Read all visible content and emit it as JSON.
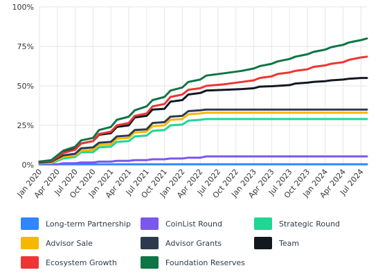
{
  "chart_data": {
    "type": "line",
    "xlabel": "",
    "ylabel": "",
    "ylim": [
      0,
      100
    ],
    "y_ticks": [
      "0%",
      "25%",
      "50%",
      "75%",
      "100%"
    ],
    "x_ticks": [
      "Jan 2020",
      "Apr 2020",
      "Jul 2020",
      "Oct 2020",
      "Jan 2021",
      "Apr 2021",
      "Jul 2021",
      "Oct 2021",
      "Jan 2022",
      "Apr 2022",
      "Jul 2022",
      "Oct 2022",
      "Jan 2023",
      "Apr 2023",
      "Jul 2023",
      "Oct 2023",
      "Jan 2024",
      "Apr 2024",
      "Jul 2024"
    ],
    "x_range": [
      "2020-01",
      "2024-08"
    ],
    "grid": true,
    "legend_position": "bottom",
    "series": [
      {
        "name": "Long-term Partnership",
        "color": "#2f86ff",
        "points": [
          [
            "2020-01",
            0.3
          ],
          [
            "2024-08",
            0.3
          ]
        ]
      },
      {
        "name": "CoinList Round",
        "color": "#7b57f0",
        "points": [
          [
            "2020-01",
            0.3
          ],
          [
            "2020-04",
            0.3
          ],
          [
            "2020-05",
            1.0
          ],
          [
            "2020-07",
            1.0
          ],
          [
            "2020-08",
            1.5
          ],
          [
            "2020-10",
            1.5
          ],
          [
            "2020-11",
            2.0
          ],
          [
            "2021-01",
            2.0
          ],
          [
            "2021-02",
            2.5
          ],
          [
            "2021-04",
            2.5
          ],
          [
            "2021-05",
            3.0
          ],
          [
            "2021-07",
            3.0
          ],
          [
            "2021-08",
            3.5
          ],
          [
            "2021-10",
            3.5
          ],
          [
            "2021-11",
            4.0
          ],
          [
            "2022-01",
            4.0
          ],
          [
            "2022-02",
            4.5
          ],
          [
            "2022-04",
            4.5
          ],
          [
            "2022-05",
            5.3
          ],
          [
            "2024-08",
            5.3
          ]
        ]
      },
      {
        "name": "Strategic Round",
        "color": "#1fd695",
        "points": [
          [
            "2020-01",
            1.0
          ],
          [
            "2020-03",
            1.0
          ],
          [
            "2020-05",
            4.0
          ],
          [
            "2020-07",
            5.0
          ],
          [
            "2020-08",
            8.0
          ],
          [
            "2020-10",
            8.0
          ],
          [
            "2020-11",
            11.0
          ],
          [
            "2021-01",
            11.5
          ],
          [
            "2021-02",
            14.5
          ],
          [
            "2021-04",
            15.0
          ],
          [
            "2021-05",
            18.0
          ],
          [
            "2021-07",
            18.5
          ],
          [
            "2021-08",
            21.5
          ],
          [
            "2021-10",
            22.0
          ],
          [
            "2021-11",
            25.0
          ],
          [
            "2022-01",
            25.5
          ],
          [
            "2022-02",
            28.0
          ],
          [
            "2022-04",
            28.5
          ],
          [
            "2022-05",
            29.0
          ],
          [
            "2024-08",
            29.0
          ]
        ]
      },
      {
        "name": "Advisor Sale",
        "color": "#f5b800",
        "points": [
          [
            "2020-01",
            1.2
          ],
          [
            "2020-03",
            1.5
          ],
          [
            "2020-05",
            5.0
          ],
          [
            "2020-07",
            6.0
          ],
          [
            "2020-08",
            9.0
          ],
          [
            "2020-10",
            9.5
          ],
          [
            "2020-11",
            12.5
          ],
          [
            "2021-01",
            13.0
          ],
          [
            "2021-02",
            16.5
          ],
          [
            "2021-04",
            17.0
          ],
          [
            "2021-05",
            20.5
          ],
          [
            "2021-07",
            21.0
          ],
          [
            "2021-08",
            24.5
          ],
          [
            "2021-10",
            25.0
          ],
          [
            "2021-11",
            28.5
          ],
          [
            "2022-01",
            29.0
          ],
          [
            "2022-02",
            32.0
          ],
          [
            "2022-04",
            32.5
          ],
          [
            "2022-05",
            33.0
          ],
          [
            "2024-08",
            33.0
          ]
        ]
      },
      {
        "name": "Advisor Grants",
        "color": "#2c3a4e",
        "points": [
          [
            "2020-01",
            1.5
          ],
          [
            "2020-03",
            2.0
          ],
          [
            "2020-05",
            6.0
          ],
          [
            "2020-07",
            7.0
          ],
          [
            "2020-08",
            10.5
          ],
          [
            "2020-10",
            11.0
          ],
          [
            "2020-11",
            14.0
          ],
          [
            "2021-01",
            14.5
          ],
          [
            "2021-02",
            18.0
          ],
          [
            "2021-04",
            18.5
          ],
          [
            "2021-05",
            22.0
          ],
          [
            "2021-07",
            22.5
          ],
          [
            "2021-08",
            26.5
          ],
          [
            "2021-10",
            27.0
          ],
          [
            "2021-11",
            30.5
          ],
          [
            "2022-01",
            31.0
          ],
          [
            "2022-02",
            34.0
          ],
          [
            "2022-04",
            34.5
          ],
          [
            "2022-05",
            35.0
          ],
          [
            "2024-08",
            35.0
          ]
        ]
      },
      {
        "name": "Team",
        "color": "#111820",
        "points": [
          [
            "2020-01",
            2.0
          ],
          [
            "2020-03",
            2.5
          ],
          [
            "2020-05",
            8.0
          ],
          [
            "2020-07",
            10.0
          ],
          [
            "2020-08",
            13.5
          ],
          [
            "2020-10",
            15.0
          ],
          [
            "2020-11",
            19.0
          ],
          [
            "2021-01",
            20.0
          ],
          [
            "2021-02",
            24.0
          ],
          [
            "2021-04",
            25.0
          ],
          [
            "2021-05",
            30.0
          ],
          [
            "2021-07",
            31.0
          ],
          [
            "2021-08",
            35.0
          ],
          [
            "2021-10",
            35.5
          ],
          [
            "2021-11",
            40.0
          ],
          [
            "2022-01",
            41.0
          ],
          [
            "2022-02",
            44.5
          ],
          [
            "2022-04",
            45.5
          ],
          [
            "2022-05",
            47.0
          ],
          [
            "2022-08",
            47.5
          ],
          [
            "2022-11",
            48.0
          ],
          [
            "2023-01",
            48.5
          ],
          [
            "2023-02",
            49.5
          ],
          [
            "2023-04",
            49.8
          ],
          [
            "2023-05",
            50.0
          ],
          [
            "2023-07",
            50.5
          ],
          [
            "2023-08",
            51.5
          ],
          [
            "2023-10",
            52.0
          ],
          [
            "2023-11",
            52.5
          ],
          [
            "2024-01",
            53.0
          ],
          [
            "2024-02",
            53.5
          ],
          [
            "2024-04",
            54.0
          ],
          [
            "2024-05",
            54.5
          ],
          [
            "2024-07",
            55.0
          ],
          [
            "2024-08",
            55.0
          ]
        ]
      },
      {
        "name": "Ecosystem Growth",
        "color": "#ee3434",
        "points": [
          [
            "2020-01",
            2.0
          ],
          [
            "2020-03",
            2.5
          ],
          [
            "2020-05",
            7.5
          ],
          [
            "2020-07",
            9.5
          ],
          [
            "2020-08",
            13.5
          ],
          [
            "2020-10",
            15.0
          ],
          [
            "2020-11",
            19.5
          ],
          [
            "2021-01",
            21.0
          ],
          [
            "2021-02",
            25.0
          ],
          [
            "2021-04",
            26.5
          ],
          [
            "2021-05",
            31.0
          ],
          [
            "2021-07",
            32.5
          ],
          [
            "2021-08",
            37.0
          ],
          [
            "2021-10",
            38.5
          ],
          [
            "2021-11",
            43.0
          ],
          [
            "2022-01",
            44.5
          ],
          [
            "2022-02",
            47.5
          ],
          [
            "2022-04",
            48.5
          ],
          [
            "2022-05",
            50.0
          ],
          [
            "2022-08",
            51.0
          ],
          [
            "2022-11",
            52.5
          ],
          [
            "2023-01",
            53.5
          ],
          [
            "2023-02",
            55.0
          ],
          [
            "2023-04",
            56.0
          ],
          [
            "2023-05",
            57.5
          ],
          [
            "2023-07",
            58.5
          ],
          [
            "2023-08",
            59.5
          ],
          [
            "2023-10",
            60.5
          ],
          [
            "2023-11",
            62.0
          ],
          [
            "2024-01",
            63.0
          ],
          [
            "2024-02",
            64.0
          ],
          [
            "2024-04",
            65.0
          ],
          [
            "2024-05",
            66.5
          ],
          [
            "2024-07",
            68.0
          ],
          [
            "2024-08",
            68.5
          ]
        ]
      },
      {
        "name": "Foundation Reserves",
        "color": "#0f7446",
        "points": [
          [
            "2020-01",
            2.0
          ],
          [
            "2020-03",
            3.0
          ],
          [
            "2020-05",
            9.0
          ],
          [
            "2020-07",
            11.5
          ],
          [
            "2020-08",
            15.5
          ],
          [
            "2020-10",
            17.0
          ],
          [
            "2020-11",
            22.0
          ],
          [
            "2021-01",
            24.0
          ],
          [
            "2021-02",
            28.5
          ],
          [
            "2021-04",
            30.5
          ],
          [
            "2021-05",
            34.5
          ],
          [
            "2021-07",
            37.0
          ],
          [
            "2021-08",
            41.0
          ],
          [
            "2021-10",
            43.0
          ],
          [
            "2021-11",
            47.0
          ],
          [
            "2022-01",
            49.0
          ],
          [
            "2022-02",
            52.5
          ],
          [
            "2022-04",
            54.0
          ],
          [
            "2022-05",
            56.5
          ],
          [
            "2022-08",
            58.0
          ],
          [
            "2022-11",
            59.5
          ],
          [
            "2023-01",
            61.0
          ],
          [
            "2023-02",
            62.5
          ],
          [
            "2023-04",
            64.0
          ],
          [
            "2023-05",
            65.5
          ],
          [
            "2023-07",
            67.0
          ],
          [
            "2023-08",
            68.5
          ],
          [
            "2023-10",
            70.0
          ],
          [
            "2023-11",
            71.5
          ],
          [
            "2024-01",
            73.0
          ],
          [
            "2024-02",
            74.5
          ],
          [
            "2024-04",
            76.0
          ],
          [
            "2024-05",
            77.5
          ],
          [
            "2024-07",
            79.0
          ],
          [
            "2024-08",
            80.0
          ]
        ]
      }
    ]
  },
  "legend": [
    {
      "label": "Long-term Partnership",
      "color": "#2f86ff"
    },
    {
      "label": "CoinList Round",
      "color": "#7b57f0"
    },
    {
      "label": "Strategic Round",
      "color": "#1fd695"
    },
    {
      "label": "Advisor Sale",
      "color": "#f5b800"
    },
    {
      "label": "Advisor Grants",
      "color": "#2c3a4e"
    },
    {
      "label": "Team",
      "color": "#111820"
    },
    {
      "label": "Ecosystem Growth",
      "color": "#ee3434"
    },
    {
      "label": "Foundation Reserves",
      "color": "#0f7446"
    }
  ]
}
